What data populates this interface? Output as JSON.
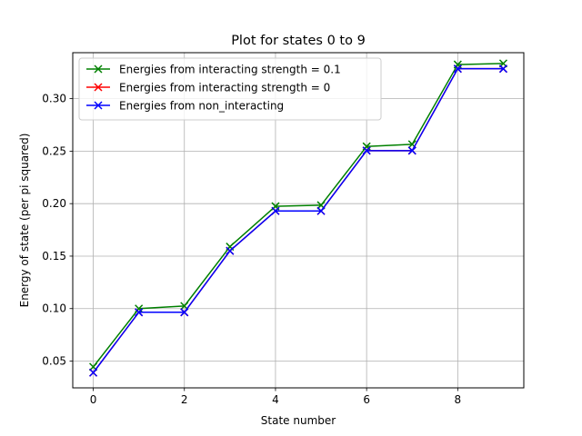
{
  "chart_data": {
    "type": "line",
    "title": "Plot for states 0 to 9",
    "xlabel": "State number",
    "ylabel": "Energy of state (per pi squared)",
    "xlim": [
      -0.45,
      9.45
    ],
    "ylim": [
      0.0245,
      0.3438
    ],
    "xticks": [
      0,
      2,
      4,
      6,
      8
    ],
    "yticks": [
      0.05,
      0.1,
      0.15,
      0.2,
      0.25,
      0.3
    ],
    "grid": true,
    "legend_position": "upper-left",
    "x": [
      0,
      1,
      2,
      3,
      4,
      5,
      6,
      7,
      8,
      9
    ],
    "series": [
      {
        "name": "Energies from interacting strength = 0.1",
        "color": "#008000",
        "marker": "x",
        "values": [
          0.0445,
          0.1,
          0.1025,
          0.159,
          0.1975,
          0.1985,
          0.2545,
          0.2565,
          0.3325,
          0.3335
        ]
      },
      {
        "name": "Energies from interacting strength = 0",
        "color": "#ff0000",
        "marker": "x",
        "values": [
          0.039,
          0.0965,
          0.0965,
          0.155,
          0.193,
          0.193,
          0.2505,
          0.2505,
          0.3285,
          0.3285
        ]
      },
      {
        "name": "Energies from non_interacting",
        "color": "#0000ff",
        "marker": "x",
        "values": [
          0.039,
          0.0965,
          0.0965,
          0.155,
          0.193,
          0.193,
          0.2505,
          0.2505,
          0.3285,
          0.3285
        ]
      }
    ]
  }
}
